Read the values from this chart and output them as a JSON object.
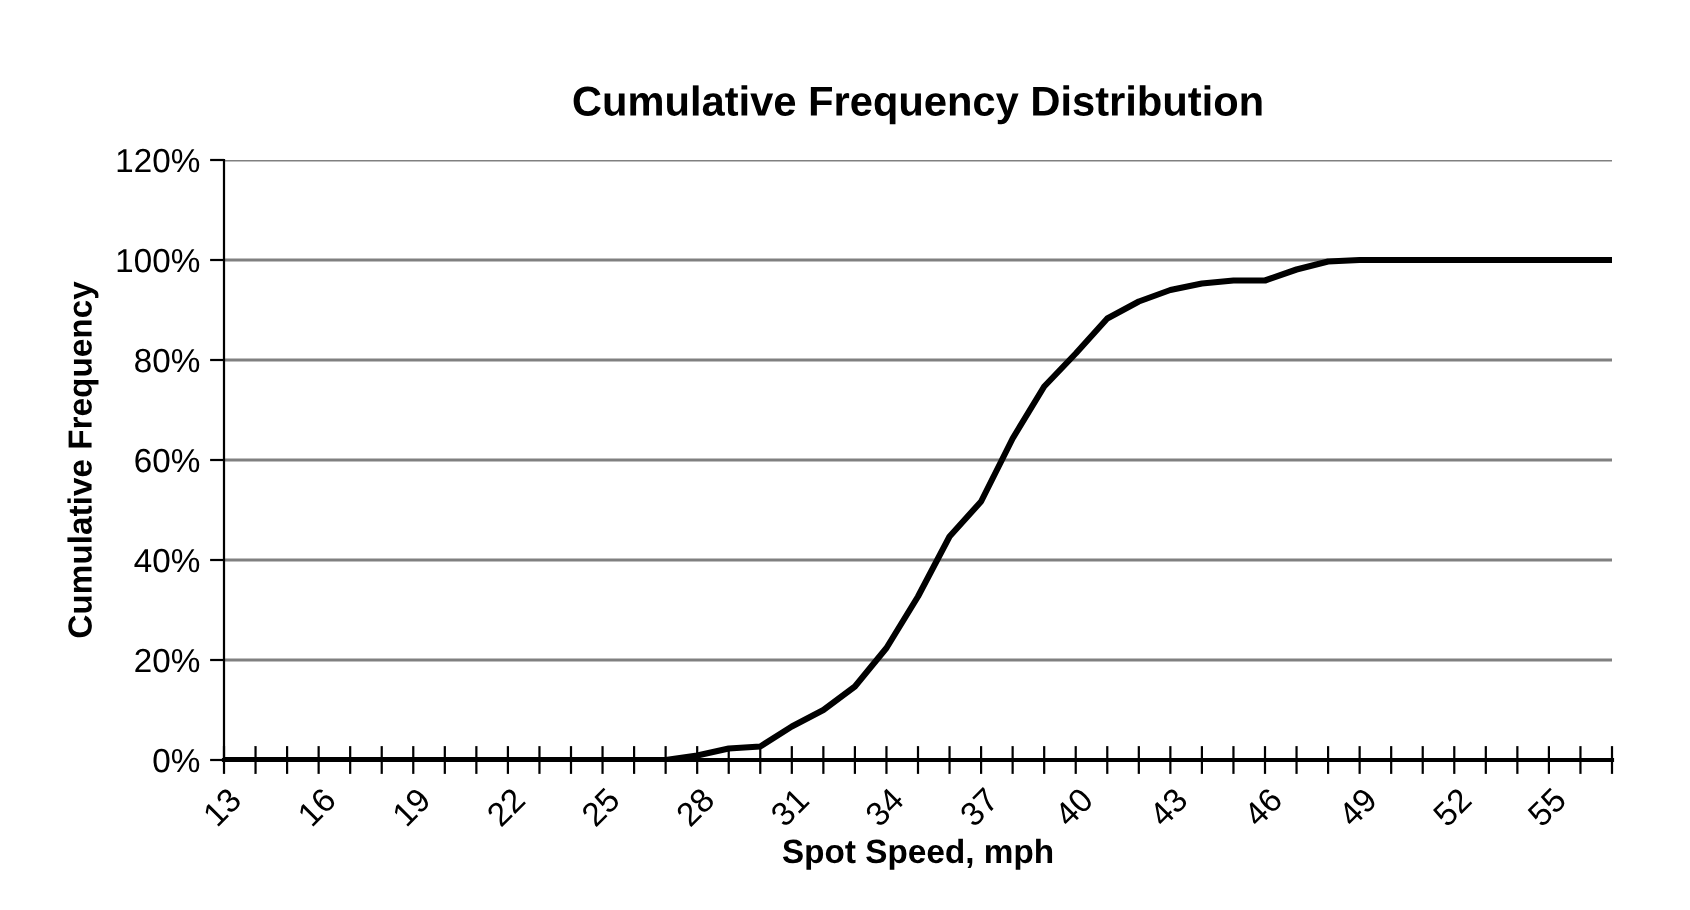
{
  "chart_data": {
    "type": "line",
    "title": "Cumulative Frequency Distribution",
    "xlabel": "Spot Speed, mph",
    "ylabel": "Cumulative Frequency",
    "categories": [
      "13",
      null,
      null,
      "16",
      null,
      null,
      "19",
      null,
      null,
      "22",
      null,
      null,
      "25",
      null,
      null,
      "28",
      null,
      null,
      "31",
      null,
      null,
      "34",
      null,
      null,
      "37",
      null,
      null,
      "40",
      null,
      null,
      "43",
      null,
      null,
      "46",
      null,
      null,
      "49",
      null,
      null,
      "52",
      null,
      null,
      "55",
      null,
      null
    ],
    "series": [
      {
        "color": "#000000",
        "values": [
          0,
          0,
          0,
          0,
          0,
          0,
          0,
          0,
          0,
          0,
          0,
          0,
          0,
          0,
          0,
          0.9,
          2.3,
          2.7,
          6.7,
          10,
          14.7,
          22.4,
          32.7,
          44.7,
          51.7,
          64.3,
          74.7,
          81.3,
          88.3,
          91.7,
          94,
          95.3,
          95.9,
          95.9,
          98.1,
          99.7,
          100,
          100,
          100,
          100,
          100,
          100,
          100,
          100,
          100
        ]
      }
    ],
    "ylim": [
      0,
      120
    ],
    "yticks": [
      {
        "value": 0,
        "label": "0%"
      },
      {
        "value": 20,
        "label": "20%"
      },
      {
        "value": 40,
        "label": "40%"
      },
      {
        "value": 60,
        "label": "60%"
      },
      {
        "value": 80,
        "label": "80%"
      },
      {
        "value": 100,
        "label": "100%"
      },
      {
        "value": 120,
        "label": "120%"
      }
    ],
    "grid": "y",
    "marker": "none",
    "line_style": "solid"
  }
}
